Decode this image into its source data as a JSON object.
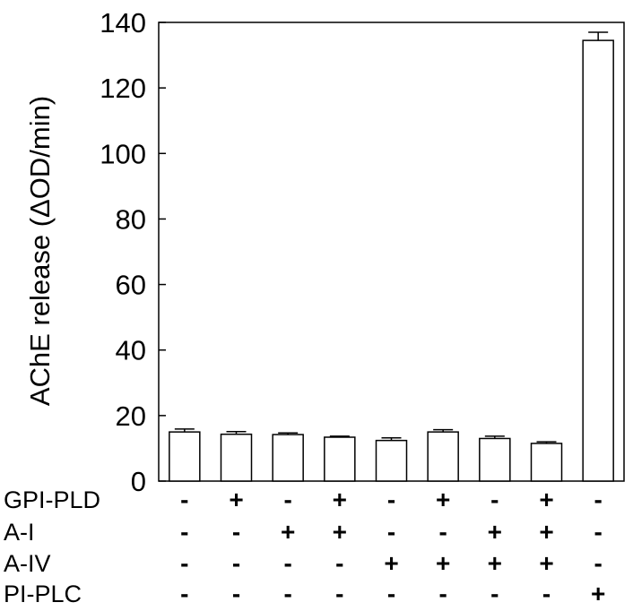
{
  "chart_data": {
    "type": "bar",
    "title": "",
    "xlabel": "",
    "ylabel": "AChE release (ΔOD/min)",
    "ylim": [
      0,
      140
    ],
    "yticks": [
      0,
      20,
      40,
      60,
      80,
      100,
      120,
      140
    ],
    "grid": false,
    "series": [
      {
        "values": [
          15.0,
          14.3,
          14.2,
          13.4,
          12.4,
          15.0,
          13.0,
          11.5,
          134.5
        ],
        "errors": [
          0.9,
          0.8,
          0.5,
          0.3,
          0.8,
          0.7,
          0.7,
          0.5,
          2.5
        ]
      }
    ],
    "treatments": [
      {
        "label": "GPI-PLD",
        "values": [
          "-",
          "+",
          "-",
          "+",
          "-",
          "+",
          "-",
          "+",
          "-"
        ]
      },
      {
        "label": "A-I",
        "values": [
          "-",
          "-",
          "+",
          "+",
          "-",
          "-",
          "+",
          "+",
          "-"
        ]
      },
      {
        "label": "A-IV",
        "values": [
          "-",
          "-",
          "-",
          "-",
          "+",
          "+",
          "+",
          "+",
          "-"
        ]
      },
      {
        "label": "PI-PLC",
        "values": [
          "-",
          "-",
          "-",
          "-",
          "-",
          "-",
          "-",
          "-",
          "+"
        ]
      }
    ],
    "colors": {
      "bar_fill": "#ffffff",
      "stroke": "#000000"
    }
  }
}
